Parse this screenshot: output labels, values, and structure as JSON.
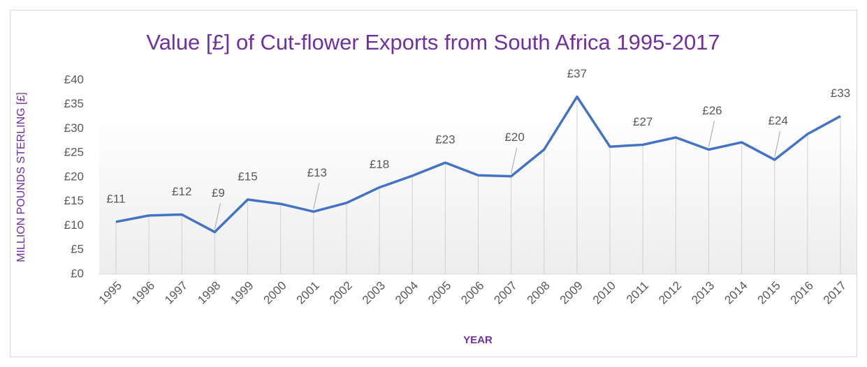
{
  "chart_data": {
    "type": "line",
    "title": "Value [£] of Cut-flower Exports from South Africa 1995-2017",
    "x_label": "YEAR",
    "y_label": "MILLION POUNDS STERLING [£]",
    "categories": [
      "1995",
      "1996",
      "1997",
      "1998",
      "1999",
      "2000",
      "2001",
      "2002",
      "2003",
      "2004",
      "2005",
      "2006",
      "2007",
      "2008",
      "2009",
      "2010",
      "2011",
      "2012",
      "2013",
      "2014",
      "2015",
      "2016",
      "2017"
    ],
    "values": [
      10.8,
      12.1,
      12.3,
      8.7,
      15.4,
      14.5,
      12.9,
      14.7,
      17.9,
      20.3,
      23.0,
      20.4,
      20.2,
      25.7,
      36.6,
      26.3,
      26.7,
      28.2,
      25.7,
      27.2,
      23.6,
      28.9,
      32.6
    ],
    "value_labels": [
      "£11",
      null,
      "£12",
      "£9",
      "£15",
      null,
      "£13",
      null,
      "£18",
      null,
      "£23",
      null,
      "£20",
      null,
      "£37",
      null,
      "£27",
      null,
      "£26",
      null,
      "£24",
      null,
      "£33"
    ],
    "color": "#4472c4",
    "ylim": [
      0,
      40
    ],
    "yticks": [
      {
        "value": 0,
        "label": "£0"
      },
      {
        "value": 5,
        "label": "£5"
      },
      {
        "value": 10,
        "label": "£10"
      },
      {
        "value": 15,
        "label": "£15"
      },
      {
        "value": 20,
        "label": "£20"
      },
      {
        "value": 25,
        "label": "£25"
      },
      {
        "value": 30,
        "label": "£30"
      },
      {
        "value": 35,
        "label": "£35"
      },
      {
        "value": 40,
        "label": "£40"
      }
    ],
    "drop_lines": true
  }
}
